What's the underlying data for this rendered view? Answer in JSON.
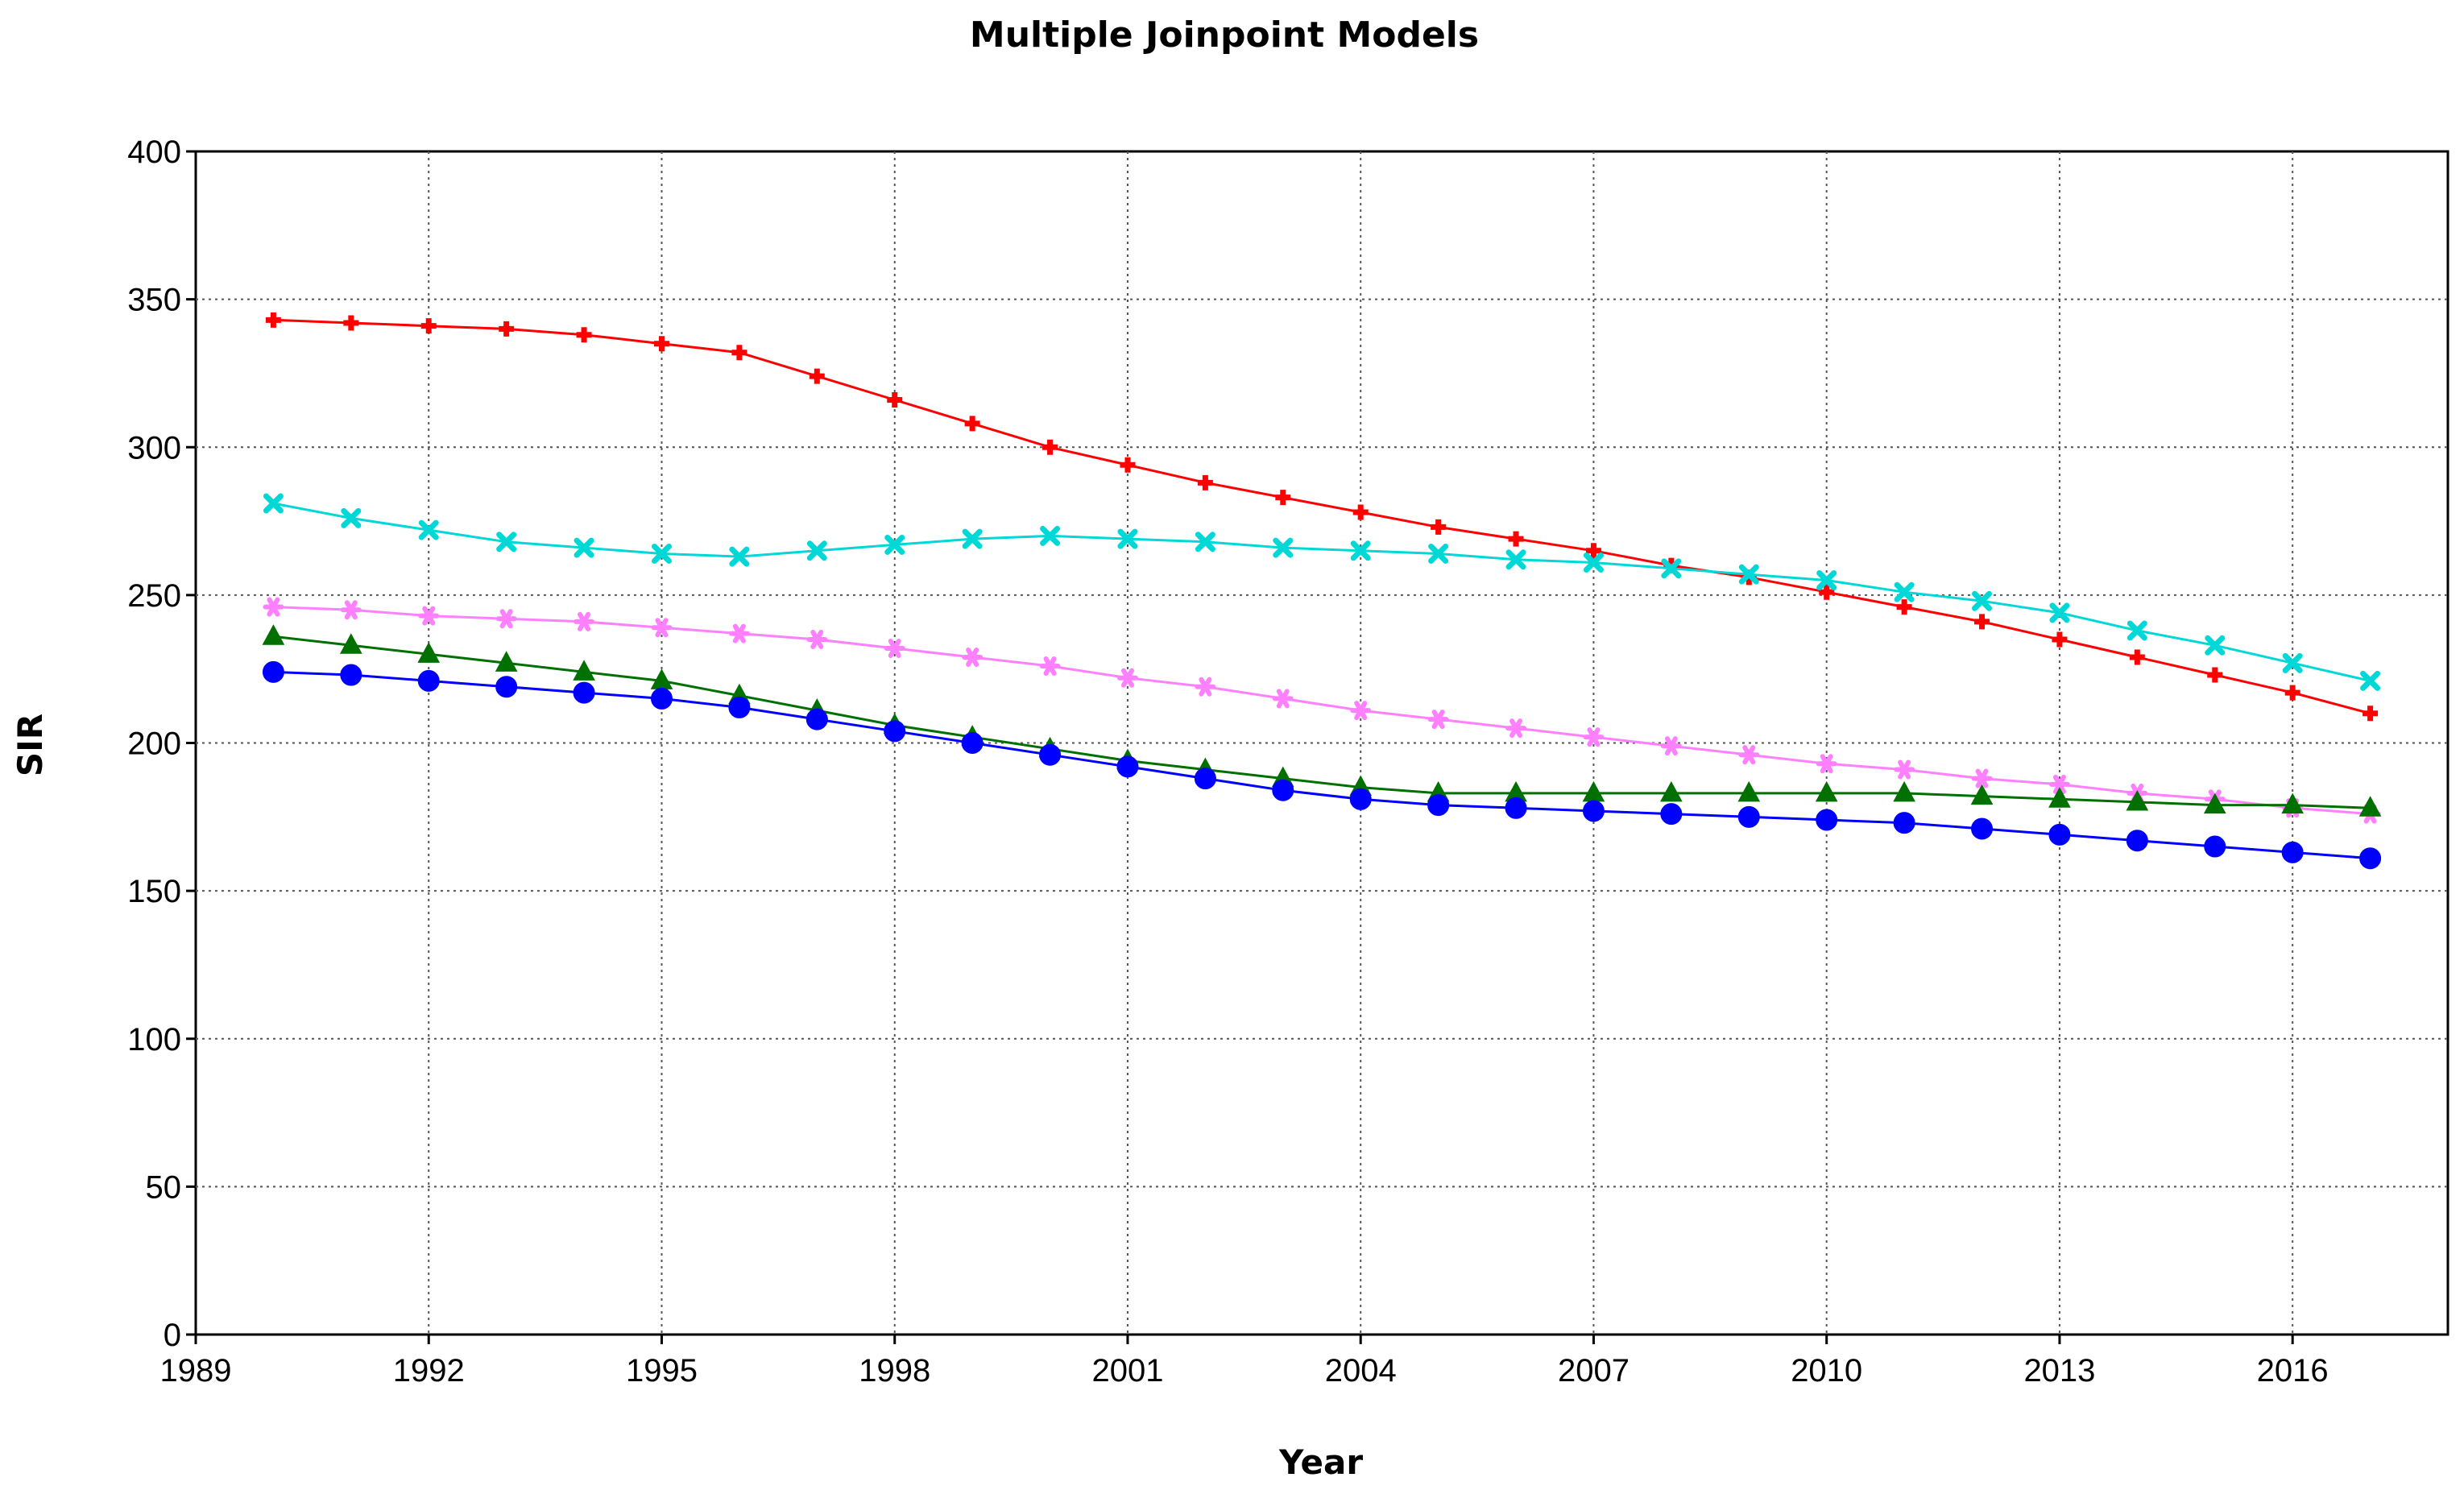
{
  "chart_data": {
    "type": "line",
    "title": "Multiple Joinpoint Models",
    "xlabel": "Year",
    "ylabel": "SIR",
    "xlim": [
      1989,
      2018
    ],
    "ylim": [
      0,
      400
    ],
    "xticks": [
      1989,
      1992,
      1995,
      1998,
      2001,
      2004,
      2007,
      2010,
      2013,
      2016
    ],
    "yticks": [
      0,
      50,
      100,
      150,
      200,
      250,
      300,
      350,
      400
    ],
    "grid": true,
    "x": [
      1990,
      1991,
      1992,
      1993,
      1994,
      1995,
      1996,
      1997,
      1998,
      1999,
      2000,
      2001,
      2002,
      2003,
      2004,
      2005,
      2006,
      2007,
      2008,
      2009,
      2010,
      2011,
      2012,
      2013,
      2014,
      2015,
      2016,
      2017
    ],
    "series": [
      {
        "name": "red",
        "color": "#ff0000",
        "marker": "diamond",
        "values": [
          343,
          342,
          341,
          340,
          338,
          335,
          332,
          324,
          316,
          308,
          300,
          294,
          288,
          283,
          278,
          273,
          269,
          265,
          260,
          256,
          251,
          246,
          241,
          235,
          229,
          223,
          217,
          210
        ]
      },
      {
        "name": "cyan",
        "color": "#00d8d8",
        "marker": "x",
        "values": [
          281,
          276,
          272,
          268,
          266,
          264,
          263,
          265,
          267,
          269,
          270,
          269,
          268,
          266,
          265,
          264,
          262,
          261,
          259,
          257,
          255,
          251,
          248,
          244,
          238,
          233,
          227,
          221
        ]
      },
      {
        "name": "pink",
        "color": "#ff80ff",
        "marker": "star",
        "values": [
          246,
          245,
          243,
          242,
          241,
          239,
          237,
          235,
          232,
          229,
          226,
          222,
          219,
          215,
          211,
          208,
          205,
          202,
          199,
          196,
          193,
          191,
          188,
          186,
          183,
          181,
          178,
          176
        ]
      },
      {
        "name": "green",
        "color": "#007000",
        "marker": "triangle",
        "values": [
          236,
          233,
          230,
          227,
          224,
          221,
          216,
          211,
          206,
          202,
          198,
          194,
          191,
          188,
          185,
          183,
          183,
          183,
          183,
          183,
          183,
          183,
          182,
          181,
          180,
          179,
          179,
          178
        ]
      },
      {
        "name": "blue",
        "color": "#0000ff",
        "marker": "circle",
        "values": [
          224,
          223,
          221,
          219,
          217,
          215,
          212,
          208,
          204,
          200,
          196,
          192,
          188,
          184,
          181,
          179,
          178,
          177,
          176,
          175,
          174,
          173,
          171,
          169,
          167,
          165,
          163,
          161
        ]
      }
    ]
  }
}
